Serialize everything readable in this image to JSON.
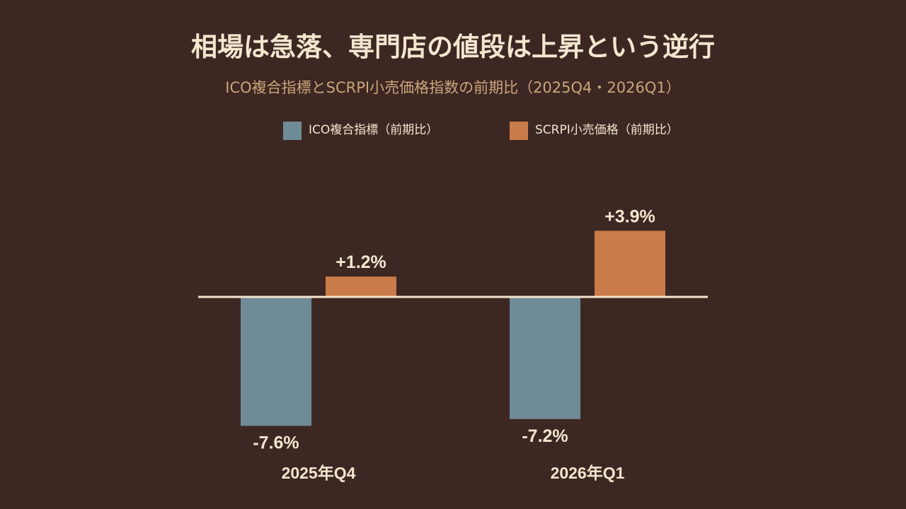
{
  "chart_data": {
    "type": "bar",
    "title": "相場は急落、専門店の値段は上昇という逆行",
    "subtitle": "ICO複合指標とSCRPI小売価格指数の前期比（2025Q4・2026Q1）",
    "categories": [
      "2025年Q4",
      "2026年Q1"
    ],
    "series": [
      {
        "name": "ICO複合指標（前期比）",
        "values": [
          -7.6,
          -7.2
        ],
        "labels": [
          "-7.6%",
          "-7.2%"
        ],
        "color": "#6f8b97"
      },
      {
        "name": "SCRPI小売価格（前期比）",
        "values": [
          1.2,
          3.9
        ],
        "labels": [
          "+1.2%",
          "+3.9%"
        ],
        "color": "#c97b4a"
      }
    ],
    "ylim": [
      -8,
      4
    ],
    "grid": false,
    "legend_position": "top",
    "baseline_color": "#f3e6cf"
  }
}
